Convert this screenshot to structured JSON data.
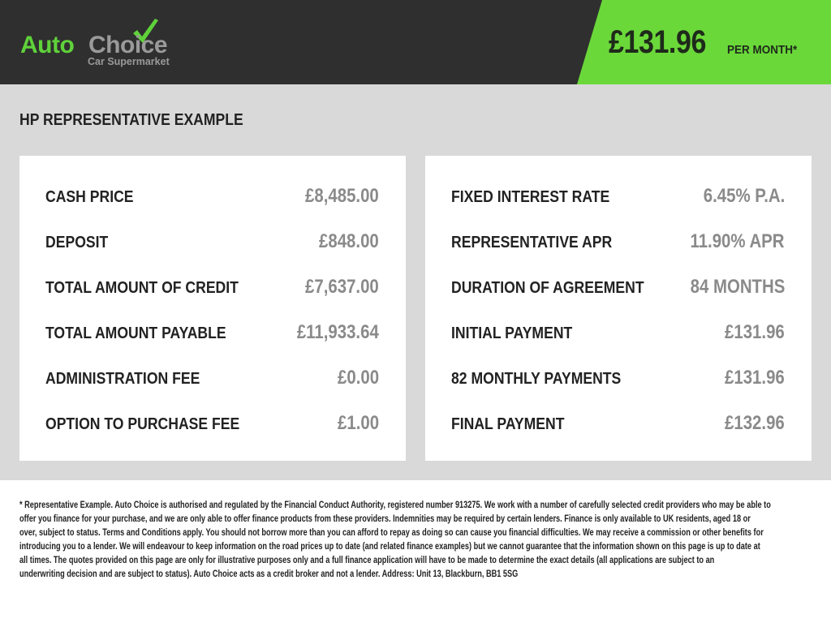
{
  "brand": {
    "name_part1": "Auto",
    "name_part2": "Choice",
    "tagline": "Car Supermarket",
    "colors": {
      "green": "#6bd83a",
      "dark": "#2f2f2f",
      "grey": "#9a9a9a"
    },
    "icon": "checkmark-icon"
  },
  "header": {
    "monthly_price": "£131.96",
    "per_month_label": "PER MONTH*"
  },
  "section_title": "HP REPRESENTATIVE EXAMPLE",
  "left_panel": [
    {
      "label": "CASH PRICE",
      "value": "£8,485.00"
    },
    {
      "label": "DEPOSIT",
      "value": "£848.00"
    },
    {
      "label": "TOTAL AMOUNT OF CREDIT",
      "value": "£7,637.00"
    },
    {
      "label": "TOTAL AMOUNT PAYABLE",
      "value": "£11,933.64"
    },
    {
      "label": "ADMINISTRATION FEE",
      "value": "£0.00"
    },
    {
      "label": "OPTION TO PURCHASE FEE",
      "value": "£1.00"
    }
  ],
  "right_panel": [
    {
      "label": "FIXED INTEREST RATE",
      "value": "6.45% P.A."
    },
    {
      "label": "REPRESENTATIVE APR",
      "value": "11.90% APR"
    },
    {
      "label": "DURATION OF AGREEMENT",
      "value": "84 MONTHS"
    },
    {
      "label": "INITIAL PAYMENT",
      "value": "£131.96"
    },
    {
      "label": "82 MONTHLY PAYMENTS",
      "value": "£131.96"
    },
    {
      "label": "FINAL PAYMENT",
      "value": "£132.96"
    }
  ],
  "disclaimer": [
    "* Representative Example. Auto Choice is authorised and regulated by the Financial Conduct Authority, registered number 913275. We work with a number of carefully selected credit providers who may be able to",
    "offer you finance for your purchase, and we are only able to offer finance products from these providers. Indemnities may be required by certain lenders. Finance is only available to UK residents, aged 18 or",
    "over, subject to status. Terms and Conditions apply. You should not borrow more than you can afford to repay as doing so can cause you financial difficulties. We may receive a commission or other benefits for",
    "introducing you to a lender. We will endeavour to keep information on the road prices up to date (and related finance examples) but we cannot guarantee that the information shown on this page is up to date at",
    "all times. The quotes provided on this page are only for illustrative purposes only and a full finance application will have to be made to determine the exact details (all applications are subject to an",
    "underwriting decision and are subject to status). Auto Choice acts as a credit broker and not a lender. Address: Unit 13, Blackburn, BB1 5SG"
  ]
}
